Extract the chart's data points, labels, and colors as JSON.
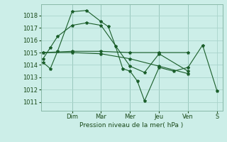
{
  "background_color": "#cceee8",
  "grid_color": "#aad4cc",
  "line_color": "#1a5e2a",
  "xlabel": "Pression niveau de la mer( hPa )",
  "ylim": [
    1010.3,
    1018.9
  ],
  "yticks": [
    1011,
    1012,
    1013,
    1014,
    1015,
    1016,
    1017,
    1018
  ],
  "x_day_labels": [
    "Dim",
    "Mar",
    "Mer",
    "Jeu",
    "Ven",
    "S"
  ],
  "x_day_positions": [
    2.67,
    5.33,
    8.0,
    10.67,
    13.33,
    16.0
  ],
  "xlim": [
    -0.2,
    16.5
  ],
  "series": [
    {
      "x": [
        0,
        0.67,
        1.33,
        2.67,
        4.0,
        5.33,
        6.0,
        6.67,
        7.33,
        8.0,
        8.67,
        9.33,
        10.67,
        12.0,
        13.33,
        14.67,
        16.0
      ],
      "y": [
        1014.2,
        1013.7,
        1015.1,
        1018.3,
        1018.4,
        1017.5,
        1017.1,
        1015.5,
        1013.7,
        1013.5,
        1012.7,
        1011.1,
        1013.8,
        1013.5,
        1013.8,
        1015.6,
        1011.9
      ]
    },
    {
      "x": [
        0,
        0.67,
        1.33,
        2.67,
        4.0,
        5.33,
        8.0,
        9.33,
        10.67,
        13.33
      ],
      "y": [
        1014.5,
        1015.4,
        1016.3,
        1017.2,
        1017.4,
        1017.2,
        1013.9,
        1013.4,
        1014.9,
        1013.5
      ]
    },
    {
      "x": [
        0,
        2.67,
        5.33,
        8.0,
        10.67,
        13.33
      ],
      "y": [
        1015.0,
        1015.1,
        1015.1,
        1015.0,
        1015.0,
        1015.0
      ]
    },
    {
      "x": [
        0,
        2.67,
        5.33,
        8.0,
        10.67,
        13.33
      ],
      "y": [
        1015.0,
        1015.0,
        1014.9,
        1014.5,
        1013.9,
        1013.3
      ]
    }
  ]
}
